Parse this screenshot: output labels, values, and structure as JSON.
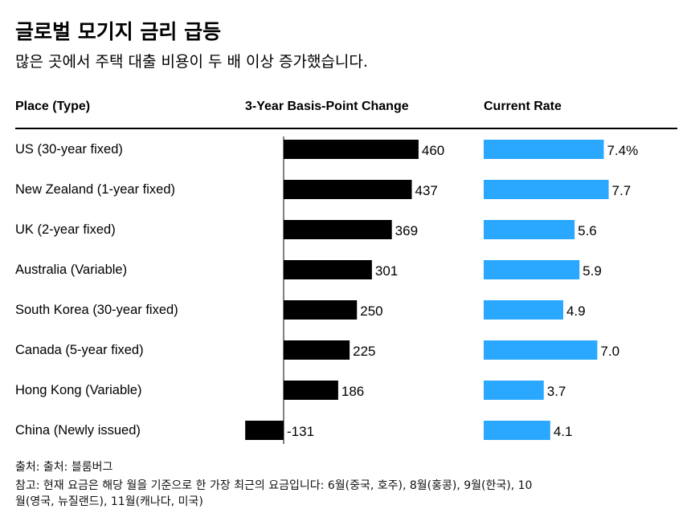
{
  "title": "글로벌 모기지 금리 급등",
  "subtitle": "많은 곳에서 주택 대출 비용이 두 배 이상 증가했습니다.",
  "headers": {
    "place": "Place (Type)",
    "change": "3-Year Basis-Point Change",
    "rate": "Current Rate"
  },
  "colors": {
    "change_bar": "#000000",
    "rate_bar": "#2aa8ff"
  },
  "chart_data": {
    "type": "bar",
    "categories": [
      "US (30-year fixed)",
      "New Zealand (1-year fixed)",
      "UK (2-year fixed)",
      "Australia (Variable)",
      "South Korea (30-year fixed)",
      "Canada (5-year fixed)",
      "Hong Kong (Variable)",
      "China (Newly issued)"
    ],
    "series": [
      {
        "name": "3-Year Basis-Point Change",
        "values": [
          460,
          437,
          369,
          301,
          250,
          225,
          186,
          -131
        ],
        "labels": [
          "460",
          "437",
          "369",
          "301",
          "250",
          "225",
          "186",
          "-131"
        ]
      },
      {
        "name": "Current Rate",
        "values": [
          7.4,
          7.7,
          5.6,
          5.9,
          4.9,
          7.0,
          3.7,
          4.1
        ],
        "labels": [
          "7.4%",
          "7.7",
          "5.6",
          "5.9",
          "4.9",
          "7.0",
          "3.7",
          "4.1"
        ]
      }
    ]
  },
  "footer": {
    "source": "출처: 출처: 블룸버그",
    "note_line1": "참고: 현재 요금은 해당 월을 기준으로 한 가장 최근의 요금입니다: 6월(중국, 호주), 8월(홍콩), 9월(한국), 10",
    "note_line2": "월(영국, 뉴질랜드), 11월(캐나다, 미국)"
  }
}
